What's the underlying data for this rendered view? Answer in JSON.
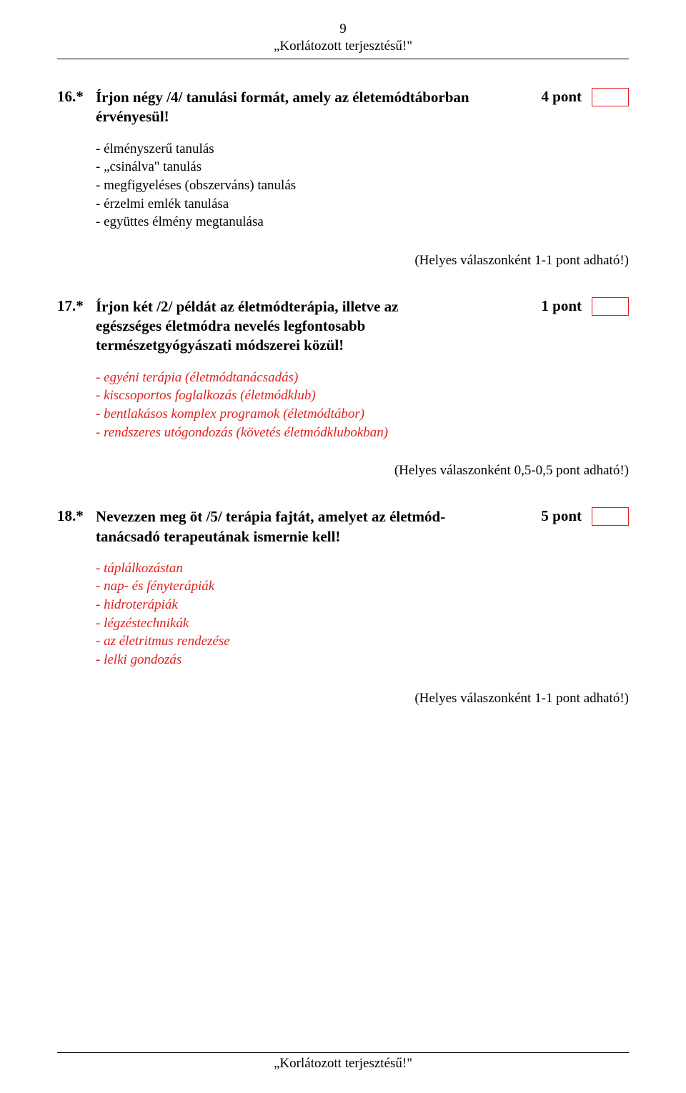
{
  "page_number": "9",
  "header_text": "„Korlátozott terjesztésű!\"",
  "footer_text": "„Korlátozott terjesztésű!\"",
  "colors": {
    "answer_text": "#e02020",
    "box_border": "#e02020",
    "text": "#000000",
    "background": "#ffffff"
  },
  "typography": {
    "body_fontsize": 19,
    "question_fontsize": 21,
    "font_family": "Times New Roman"
  },
  "questions": [
    {
      "number": "16.*",
      "text_line1": "Írjon négy /4/ tanulási formát, amely az életemódtáborban",
      "text_line2": "érvényesül!",
      "points": "4 pont",
      "answers": [
        "- élményszerű tanulás",
        "- „csinálva\" tanulás",
        "- megfigyeléses (obszerváns) tanulás",
        "- érzelmi emlék tanulása",
        "- együttes élmény megtanulása"
      ],
      "scoring": "(Helyes válaszonként 1-1 pont adható!)"
    },
    {
      "number": "17.*",
      "text_line1": "Írjon két /2/ példát az életmódterápia, illetve az",
      "text_line2": "egészséges életmódra nevelés legfontosabb",
      "text_line3": "természetgyógyászati módszerei közül!",
      "points": "1 pont",
      "answers": [
        "- egyéni terápia (életmódtanácsadás)",
        "- kiscsoportos foglalkozás (életmódklub)",
        "- bentlakásos komplex programok (életmódtábor)",
        "- rendszeres utógondozás (követés életmódklubokban)"
      ],
      "scoring": "(Helyes válaszonként 0,5-0,5 pont adható!)"
    },
    {
      "number": "18.*",
      "text_line1": "Nevezzen meg öt /5/ terápia fajtát, amelyet az életmód-",
      "text_line2": "tanácsadó terapeutának ismernie kell!",
      "points": "5 pont",
      "answers": [
        "- táplálkozástan",
        "- nap- és fényterápiák",
        "- hidroterápiák",
        "- légzéstechnikák",
        "- az életritmus rendezése",
        "- lelki gondozás"
      ],
      "scoring": "(Helyes válaszonként 1-1 pont adható!)"
    }
  ]
}
